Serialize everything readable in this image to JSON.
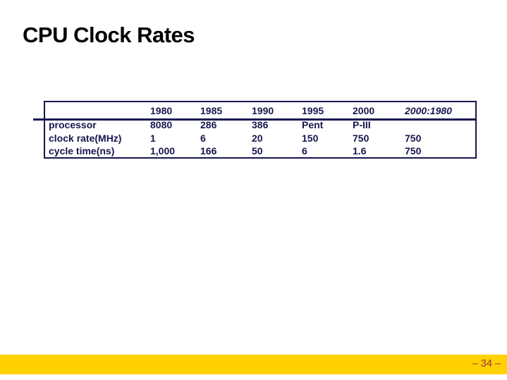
{
  "slide": {
    "title": "CPU Clock Rates",
    "page_number": "– 34 –"
  },
  "table": {
    "columns": [
      "",
      "1980",
      "1985",
      "1990",
      "1995",
      "2000",
      "2000:1980"
    ],
    "rows": [
      {
        "label": "processor",
        "values": [
          "8080",
          "286",
          "386",
          "Pent",
          "P-III",
          ""
        ]
      },
      {
        "label": "clock rate(MHz)",
        "values": [
          "1",
          "6",
          "20",
          "150",
          "750",
          "750"
        ]
      },
      {
        "label": "cycle time(ns)",
        "values": [
          "1,000",
          "166",
          "50",
          "6",
          "1.6",
          "750"
        ]
      }
    ]
  },
  "colors": {
    "text_navy": "#16164e",
    "title_black": "#000000",
    "footer_yellow": "#ffd100",
    "page_number_red": "#9c3137"
  }
}
